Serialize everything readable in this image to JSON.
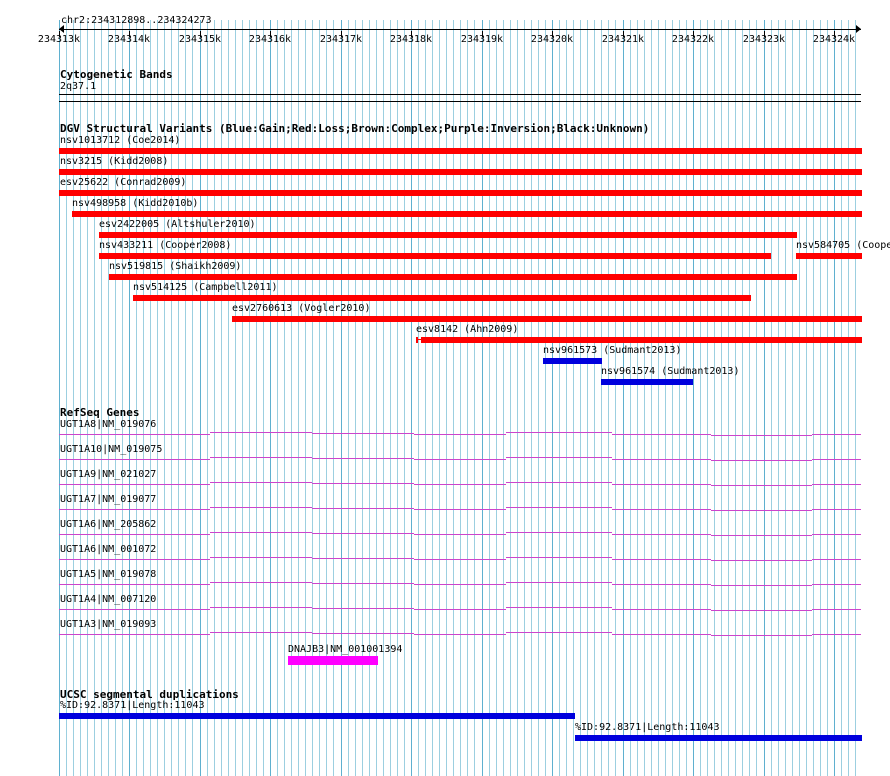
{
  "browser": {
    "location": "chr2:234312898..234324273",
    "ruler_ticks": [
      "234313k",
      "234314k",
      "234315k",
      "234316k",
      "234317k",
      "234318k",
      "234319k",
      "234320k",
      "234321k",
      "234322k",
      "234323k",
      "234324k"
    ]
  },
  "cytobands": {
    "title": "Cytogenetic Bands",
    "band": "2q37.1"
  },
  "dgv": {
    "title": "DGV Structural Variants (Blue:Gain;Red:Loss;Brown:Complex;Purple:Inversion;Black:Unknown)",
    "colors": {
      "loss": "#ff0000",
      "gain": "#0000dd"
    },
    "features": [
      {
        "label": "nsv1013712 (Coe2014)",
        "type": "loss"
      },
      {
        "label": "nsv3215 (Kidd2008)",
        "type": "loss"
      },
      {
        "label": "esv25622 (Conrad2009)",
        "type": "loss"
      },
      {
        "label": "nsv498958 (Kidd2010b)",
        "type": "loss"
      },
      {
        "label": "esv2422005 (Altshuler2010)",
        "type": "loss"
      },
      {
        "label": "nsv433211 (Cooper2008)",
        "type": "loss"
      },
      {
        "label": "nsv584705 (Cooper",
        "type": "loss"
      },
      {
        "label": "nsv519815 (Shaikh2009)",
        "type": "loss"
      },
      {
        "label": "nsv514125 (Campbell2011)",
        "type": "loss"
      },
      {
        "label": "esv2760613 (Vogler2010)",
        "type": "loss"
      },
      {
        "label": "esv8142 (Ahn2009)",
        "type": "loss"
      },
      {
        "label": "nsv961573 (Sudmant2013)",
        "type": "gain"
      },
      {
        "label": "nsv961574 (Sudmant2013)",
        "type": "gain"
      }
    ]
  },
  "refseq": {
    "title": "RefSeq Genes",
    "intron_color": "#cc44cc",
    "exon_color": "#ff00ff",
    "genes": [
      {
        "label": "UGT1A8|NM_019076"
      },
      {
        "label": "UGT1A10|NM_019075"
      },
      {
        "label": "UGT1A9|NM_021027"
      },
      {
        "label": "UGT1A7|NM_019077"
      },
      {
        "label": "UGT1A6|NM_205862"
      },
      {
        "label": "UGT1A6|NM_001072"
      },
      {
        "label": "UGT1A5|NM_019078"
      },
      {
        "label": "UGT1A4|NM_007120"
      },
      {
        "label": "UGT1A3|NM_019093"
      },
      {
        "label": "DNAJB3|NM_001001394"
      }
    ]
  },
  "segdups": {
    "title": "UCSC segmental duplications",
    "color": "#0000dd",
    "features": [
      {
        "label": "%ID:92.8371|Length:11043"
      },
      {
        "label": "%ID:92.8371|Length:11043"
      }
    ]
  }
}
